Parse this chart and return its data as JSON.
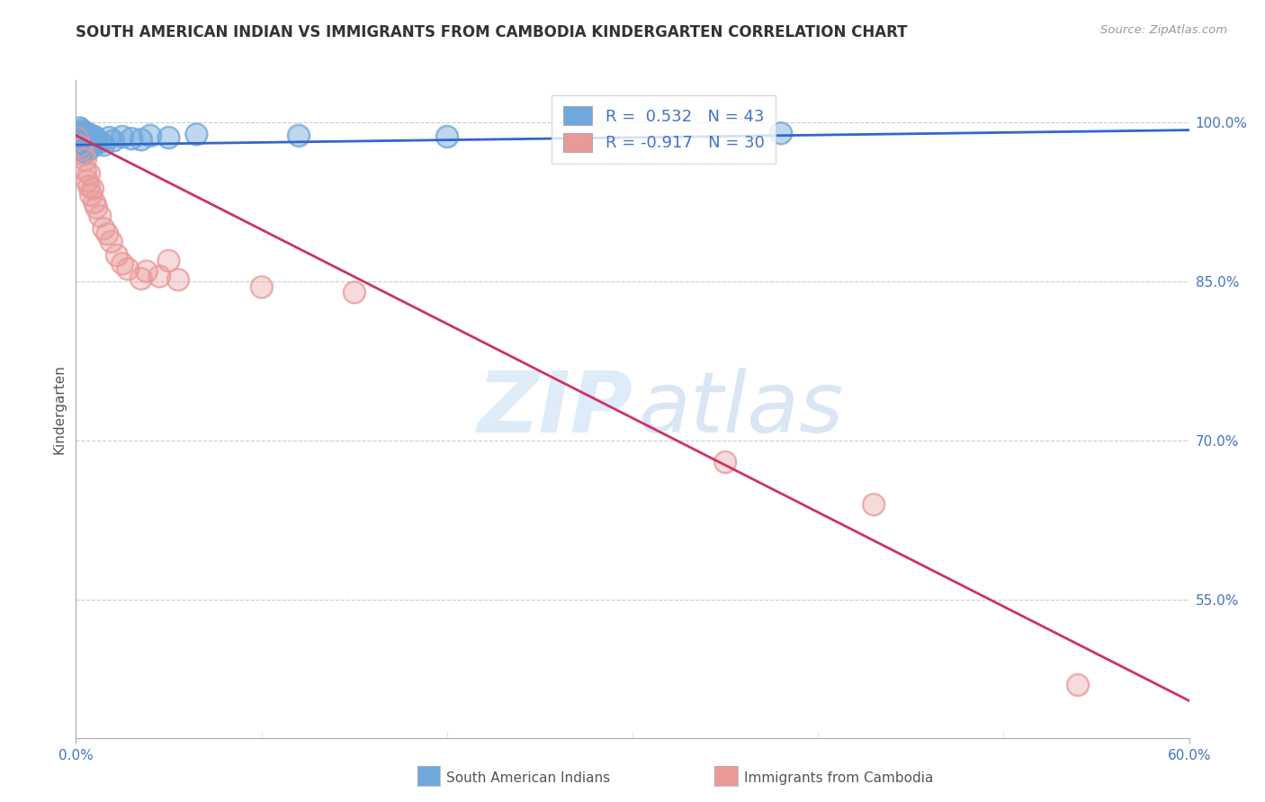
{
  "title": "SOUTH AMERICAN INDIAN VS IMMIGRANTS FROM CAMBODIA KINDERGARTEN CORRELATION CHART",
  "source": "Source: ZipAtlas.com",
  "ylabel": "Kindergarten",
  "xtick_labels_left": "0.0%",
  "xtick_labels_right": "60.0%",
  "ytick_labels": [
    "100.0%",
    "85.0%",
    "70.0%",
    "55.0%"
  ],
  "ytick_positions": [
    1.0,
    0.85,
    0.7,
    0.55
  ],
  "xmin": 0.0,
  "xmax": 0.6,
  "ymin": 0.42,
  "ymax": 1.04,
  "blue_R": 0.532,
  "blue_N": 43,
  "pink_R": -0.917,
  "pink_N": 30,
  "blue_color": "#6fa8dc",
  "pink_color": "#ea9999",
  "blue_line_color": "#3366cc",
  "pink_line_color": "#cc3366",
  "watermark_zip": "ZIP",
  "watermark_atlas": "atlas",
  "legend_label_blue": "South American Indians",
  "legend_label_pink": "Immigrants from Cambodia",
  "blue_scatter_x": [
    0.001,
    0.001,
    0.002,
    0.002,
    0.002,
    0.003,
    0.003,
    0.003,
    0.003,
    0.004,
    0.004,
    0.004,
    0.004,
    0.005,
    0.005,
    0.005,
    0.005,
    0.006,
    0.006,
    0.006,
    0.007,
    0.007,
    0.007,
    0.008,
    0.008,
    0.009,
    0.009,
    0.01,
    0.01,
    0.011,
    0.013,
    0.015,
    0.018,
    0.02,
    0.025,
    0.03,
    0.035,
    0.04,
    0.05,
    0.065,
    0.12,
    0.2,
    0.38
  ],
  "blue_scatter_y": [
    0.99,
    0.982,
    0.995,
    0.988,
    0.975,
    0.993,
    0.987,
    0.982,
    0.976,
    0.991,
    0.985,
    0.98,
    0.974,
    0.988,
    0.983,
    0.978,
    0.972,
    0.99,
    0.984,
    0.978,
    0.986,
    0.981,
    0.975,
    0.988,
    0.983,
    0.985,
    0.978,
    0.987,
    0.981,
    0.984,
    0.982,
    0.979,
    0.986,
    0.983,
    0.987,
    0.985,
    0.984,
    0.988,
    0.986,
    0.989,
    0.988,
    0.987,
    0.99
  ],
  "pink_scatter_x": [
    0.001,
    0.002,
    0.003,
    0.004,
    0.005,
    0.005,
    0.006,
    0.007,
    0.007,
    0.008,
    0.009,
    0.01,
    0.011,
    0.013,
    0.015,
    0.017,
    0.019,
    0.022,
    0.025,
    0.028,
    0.035,
    0.038,
    0.045,
    0.05,
    0.055,
    0.1,
    0.15,
    0.35,
    0.43,
    0.54
  ],
  "pink_scatter_y": [
    0.985,
    0.978,
    0.975,
    0.97,
    0.965,
    0.955,
    0.945,
    0.952,
    0.94,
    0.932,
    0.938,
    0.925,
    0.92,
    0.912,
    0.9,
    0.895,
    0.888,
    0.875,
    0.867,
    0.862,
    0.853,
    0.86,
    0.855,
    0.87,
    0.852,
    0.845,
    0.84,
    0.68,
    0.64,
    0.47
  ],
  "blue_line_x": [
    0.0,
    0.6
  ],
  "blue_line_y": [
    0.979,
    0.993
  ],
  "pink_line_x": [
    0.0,
    0.6
  ],
  "pink_line_y": [
    0.988,
    0.455
  ]
}
